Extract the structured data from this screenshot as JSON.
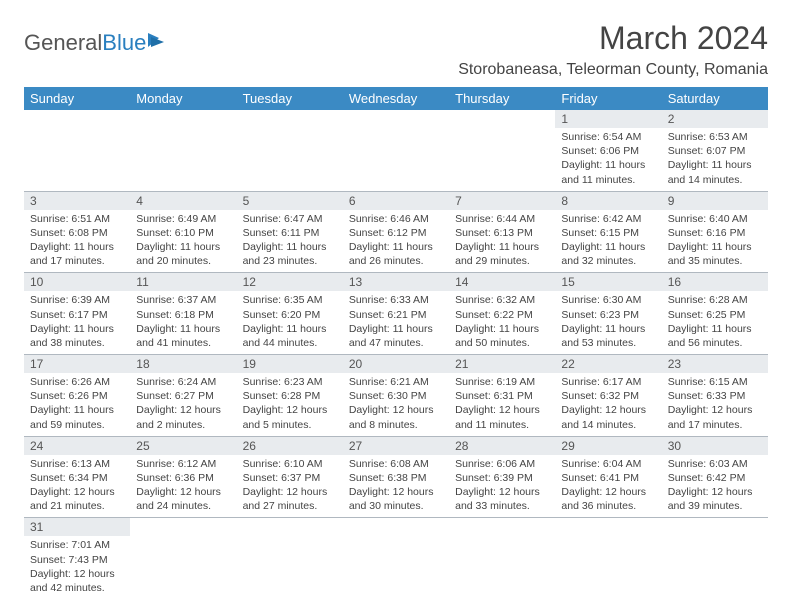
{
  "brand": {
    "name1": "General",
    "name2": "Blue"
  },
  "title": "March 2024",
  "location": "Storobaneasa, Teleorman County, Romania",
  "colors": {
    "header_bg": "#3b8ac4",
    "header_text": "#ffffff",
    "daynum_bg": "#e8ebee",
    "border": "#b0b8c0",
    "logo_accent": "#2a7fbf"
  },
  "weekdays": [
    "Sunday",
    "Monday",
    "Tuesday",
    "Wednesday",
    "Thursday",
    "Friday",
    "Saturday"
  ],
  "grid": [
    [
      null,
      null,
      null,
      null,
      null,
      {
        "day": "1",
        "sunrise": "Sunrise: 6:54 AM",
        "sunset": "Sunset: 6:06 PM",
        "daylight": "Daylight: 11 hours and 11 minutes."
      },
      {
        "day": "2",
        "sunrise": "Sunrise: 6:53 AM",
        "sunset": "Sunset: 6:07 PM",
        "daylight": "Daylight: 11 hours and 14 minutes."
      }
    ],
    [
      {
        "day": "3",
        "sunrise": "Sunrise: 6:51 AM",
        "sunset": "Sunset: 6:08 PM",
        "daylight": "Daylight: 11 hours and 17 minutes."
      },
      {
        "day": "4",
        "sunrise": "Sunrise: 6:49 AM",
        "sunset": "Sunset: 6:10 PM",
        "daylight": "Daylight: 11 hours and 20 minutes."
      },
      {
        "day": "5",
        "sunrise": "Sunrise: 6:47 AM",
        "sunset": "Sunset: 6:11 PM",
        "daylight": "Daylight: 11 hours and 23 minutes."
      },
      {
        "day": "6",
        "sunrise": "Sunrise: 6:46 AM",
        "sunset": "Sunset: 6:12 PM",
        "daylight": "Daylight: 11 hours and 26 minutes."
      },
      {
        "day": "7",
        "sunrise": "Sunrise: 6:44 AM",
        "sunset": "Sunset: 6:13 PM",
        "daylight": "Daylight: 11 hours and 29 minutes."
      },
      {
        "day": "8",
        "sunrise": "Sunrise: 6:42 AM",
        "sunset": "Sunset: 6:15 PM",
        "daylight": "Daylight: 11 hours and 32 minutes."
      },
      {
        "day": "9",
        "sunrise": "Sunrise: 6:40 AM",
        "sunset": "Sunset: 6:16 PM",
        "daylight": "Daylight: 11 hours and 35 minutes."
      }
    ],
    [
      {
        "day": "10",
        "sunrise": "Sunrise: 6:39 AM",
        "sunset": "Sunset: 6:17 PM",
        "daylight": "Daylight: 11 hours and 38 minutes."
      },
      {
        "day": "11",
        "sunrise": "Sunrise: 6:37 AM",
        "sunset": "Sunset: 6:18 PM",
        "daylight": "Daylight: 11 hours and 41 minutes."
      },
      {
        "day": "12",
        "sunrise": "Sunrise: 6:35 AM",
        "sunset": "Sunset: 6:20 PM",
        "daylight": "Daylight: 11 hours and 44 minutes."
      },
      {
        "day": "13",
        "sunrise": "Sunrise: 6:33 AM",
        "sunset": "Sunset: 6:21 PM",
        "daylight": "Daylight: 11 hours and 47 minutes."
      },
      {
        "day": "14",
        "sunrise": "Sunrise: 6:32 AM",
        "sunset": "Sunset: 6:22 PM",
        "daylight": "Daylight: 11 hours and 50 minutes."
      },
      {
        "day": "15",
        "sunrise": "Sunrise: 6:30 AM",
        "sunset": "Sunset: 6:23 PM",
        "daylight": "Daylight: 11 hours and 53 minutes."
      },
      {
        "day": "16",
        "sunrise": "Sunrise: 6:28 AM",
        "sunset": "Sunset: 6:25 PM",
        "daylight": "Daylight: 11 hours and 56 minutes."
      }
    ],
    [
      {
        "day": "17",
        "sunrise": "Sunrise: 6:26 AM",
        "sunset": "Sunset: 6:26 PM",
        "daylight": "Daylight: 11 hours and 59 minutes."
      },
      {
        "day": "18",
        "sunrise": "Sunrise: 6:24 AM",
        "sunset": "Sunset: 6:27 PM",
        "daylight": "Daylight: 12 hours and 2 minutes."
      },
      {
        "day": "19",
        "sunrise": "Sunrise: 6:23 AM",
        "sunset": "Sunset: 6:28 PM",
        "daylight": "Daylight: 12 hours and 5 minutes."
      },
      {
        "day": "20",
        "sunrise": "Sunrise: 6:21 AM",
        "sunset": "Sunset: 6:30 PM",
        "daylight": "Daylight: 12 hours and 8 minutes."
      },
      {
        "day": "21",
        "sunrise": "Sunrise: 6:19 AM",
        "sunset": "Sunset: 6:31 PM",
        "daylight": "Daylight: 12 hours and 11 minutes."
      },
      {
        "day": "22",
        "sunrise": "Sunrise: 6:17 AM",
        "sunset": "Sunset: 6:32 PM",
        "daylight": "Daylight: 12 hours and 14 minutes."
      },
      {
        "day": "23",
        "sunrise": "Sunrise: 6:15 AM",
        "sunset": "Sunset: 6:33 PM",
        "daylight": "Daylight: 12 hours and 17 minutes."
      }
    ],
    [
      {
        "day": "24",
        "sunrise": "Sunrise: 6:13 AM",
        "sunset": "Sunset: 6:34 PM",
        "daylight": "Daylight: 12 hours and 21 minutes."
      },
      {
        "day": "25",
        "sunrise": "Sunrise: 6:12 AM",
        "sunset": "Sunset: 6:36 PM",
        "daylight": "Daylight: 12 hours and 24 minutes."
      },
      {
        "day": "26",
        "sunrise": "Sunrise: 6:10 AM",
        "sunset": "Sunset: 6:37 PM",
        "daylight": "Daylight: 12 hours and 27 minutes."
      },
      {
        "day": "27",
        "sunrise": "Sunrise: 6:08 AM",
        "sunset": "Sunset: 6:38 PM",
        "daylight": "Daylight: 12 hours and 30 minutes."
      },
      {
        "day": "28",
        "sunrise": "Sunrise: 6:06 AM",
        "sunset": "Sunset: 6:39 PM",
        "daylight": "Daylight: 12 hours and 33 minutes."
      },
      {
        "day": "29",
        "sunrise": "Sunrise: 6:04 AM",
        "sunset": "Sunset: 6:41 PM",
        "daylight": "Daylight: 12 hours and 36 minutes."
      },
      {
        "day": "30",
        "sunrise": "Sunrise: 6:03 AM",
        "sunset": "Sunset: 6:42 PM",
        "daylight": "Daylight: 12 hours and 39 minutes."
      }
    ],
    [
      {
        "day": "31",
        "sunrise": "Sunrise: 7:01 AM",
        "sunset": "Sunset: 7:43 PM",
        "daylight": "Daylight: 12 hours and 42 minutes."
      },
      null,
      null,
      null,
      null,
      null,
      null
    ]
  ]
}
